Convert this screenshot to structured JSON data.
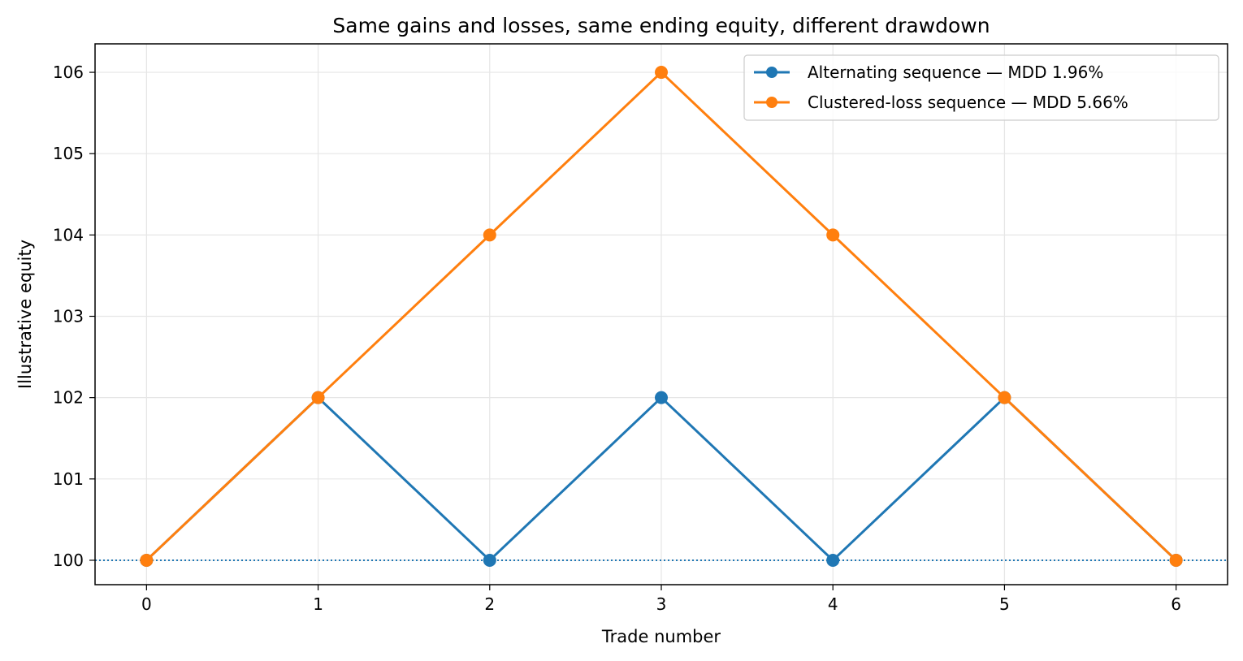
{
  "chart_data": {
    "type": "line",
    "title": "Same gains and losses, same ending equity, different drawdown",
    "xlabel": "Trade number",
    "ylabel": "Illustrative equity",
    "x": [
      0,
      1,
      2,
      3,
      4,
      5,
      6
    ],
    "xlim": [
      -0.3,
      6.3
    ],
    "ylim": [
      99.7,
      106.35
    ],
    "xticks": [
      0,
      1,
      2,
      3,
      4,
      5,
      6
    ],
    "yticks": [
      100,
      101,
      102,
      103,
      104,
      105,
      106
    ],
    "grid": true,
    "legend_position": "top-right",
    "reference_line": {
      "y": 100,
      "style": "dotted",
      "color": "#1f77b4"
    },
    "series": [
      {
        "name": "Alternating sequence — MDD 1.96%",
        "color": "#1f77b4",
        "values": [
          100,
          102,
          100,
          102,
          100,
          102,
          100
        ]
      },
      {
        "name": "Clustered-loss sequence — MDD 5.66%",
        "color": "#ff7f0e",
        "values": [
          100,
          102,
          104,
          106,
          104,
          102,
          100
        ]
      }
    ]
  }
}
